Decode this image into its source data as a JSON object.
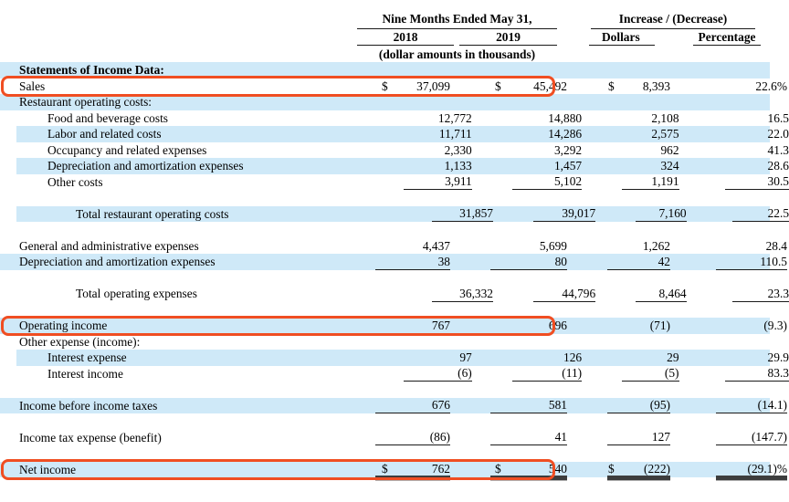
{
  "colors": {
    "row_highlight": "#cfe9f8",
    "annotation_box": "#f04e22",
    "rule": "#1a1a1a"
  },
  "table": {
    "header": {
      "period_title": "Nine Months Ended May 31,",
      "col_2018": "2018",
      "col_2019": "2019",
      "subnote": "(dollar amounts in thousands)",
      "change_title": "Increase / (Decrease)",
      "col_dollars": "Dollars",
      "col_percentage": "Percentage"
    },
    "rows": [
      {
        "label": "Statements of Income Data:",
        "indent": 0,
        "bold": true,
        "blue": true
      },
      {
        "label": "Sales",
        "indent": 0,
        "annotated": true,
        "d2018": "$",
        "v2018": "37,099",
        "d2019": "$",
        "v2019": "45,492",
        "dchg": "$",
        "vchg": "8,393",
        "vpct": "22.6%"
      },
      {
        "label": "Restaurant operating costs:",
        "indent": 0,
        "blue": true
      },
      {
        "label": "Food and beverage costs",
        "indent": 1,
        "v2018": "12,772",
        "v2019": "14,880",
        "vchg": "2,108",
        "vpct": "16.5"
      },
      {
        "label": "Labor and related costs",
        "indent": 1,
        "blue": true,
        "inset": true,
        "v2018": "11,711",
        "v2019": "14,286",
        "vchg": "2,575",
        "vpct": "22.0"
      },
      {
        "label": "Occupancy and related expenses",
        "indent": 1,
        "v2018": "2,330",
        "v2019": "3,292",
        "vchg": "962",
        "vpct": "41.3"
      },
      {
        "label": "Depreciation and amortization expenses",
        "indent": 1,
        "blue": true,
        "inset": true,
        "v2018": "1,133",
        "v2019": "1,457",
        "vchg": "324",
        "vpct": "28.6"
      },
      {
        "label": "Other costs",
        "indent": 1,
        "rule": true,
        "v2018": "3,911",
        "v2019": "5,102",
        "vchg": "1,191",
        "vpct": "30.5"
      },
      {
        "spacer": true
      },
      {
        "label": "Total restaurant operating costs",
        "indent": 2,
        "blue": true,
        "inset": true,
        "rule": true,
        "v2018": "31,857",
        "v2019": "39,017",
        "vchg": "7,160",
        "vpct": "22.5"
      },
      {
        "spacer": true
      },
      {
        "label": "General and administrative expenses",
        "indent": 0,
        "v2018": "4,437",
        "v2019": "5,699",
        "vchg": "1,262",
        "vpct": "28.4"
      },
      {
        "label": "Depreciation and amortization expenses",
        "indent": 0,
        "blue": true,
        "rule": true,
        "v2018": "38",
        "v2019": "80",
        "vchg": "42",
        "vpct": "110.5"
      },
      {
        "spacer": true
      },
      {
        "label": "Total operating expenses",
        "indent": 2,
        "rule": true,
        "v2018": "36,332",
        "v2019": "44,796",
        "vchg": "8,464",
        "vpct": "23.3"
      },
      {
        "spacer": true
      },
      {
        "label": "Operating income",
        "indent": 0,
        "blue": true,
        "annotated": true,
        "v2018": "767",
        "v2019": "696",
        "vchg": "(71)",
        "vpct": "(9.3)"
      },
      {
        "label": "Other expense (income):",
        "indent": 0
      },
      {
        "label": "Interest expense",
        "indent": 1,
        "blue": true,
        "inset": true,
        "v2018": "97",
        "v2019": "126",
        "vchg": "29",
        "vpct": "29.9"
      },
      {
        "label": "Interest income",
        "indent": 1,
        "rule": true,
        "v2018": "(6)",
        "v2019": "(11)",
        "vchg": "(5)",
        "vpct": "83.3"
      },
      {
        "spacer": true
      },
      {
        "label": "Income before income taxes",
        "indent": 0,
        "blue": true,
        "rule": true,
        "v2018": "676",
        "v2019": "581",
        "vchg": "(95)",
        "vpct": "(14.1)"
      },
      {
        "spacer": true
      },
      {
        "label": "Income tax expense (benefit)",
        "indent": 0,
        "rule": true,
        "v2018": "(86)",
        "v2019": "41",
        "vchg": "127",
        "vpct": "(147.7)"
      },
      {
        "spacer": true
      },
      {
        "label": "Net income",
        "indent": 0,
        "blue": true,
        "annotated": true,
        "double_rule": true,
        "d2018": "$",
        "v2018": "762",
        "d2019": "$",
        "v2019": "540",
        "dchg": "$",
        "vchg": "(222)",
        "vpct": "(29.1)%"
      }
    ]
  }
}
